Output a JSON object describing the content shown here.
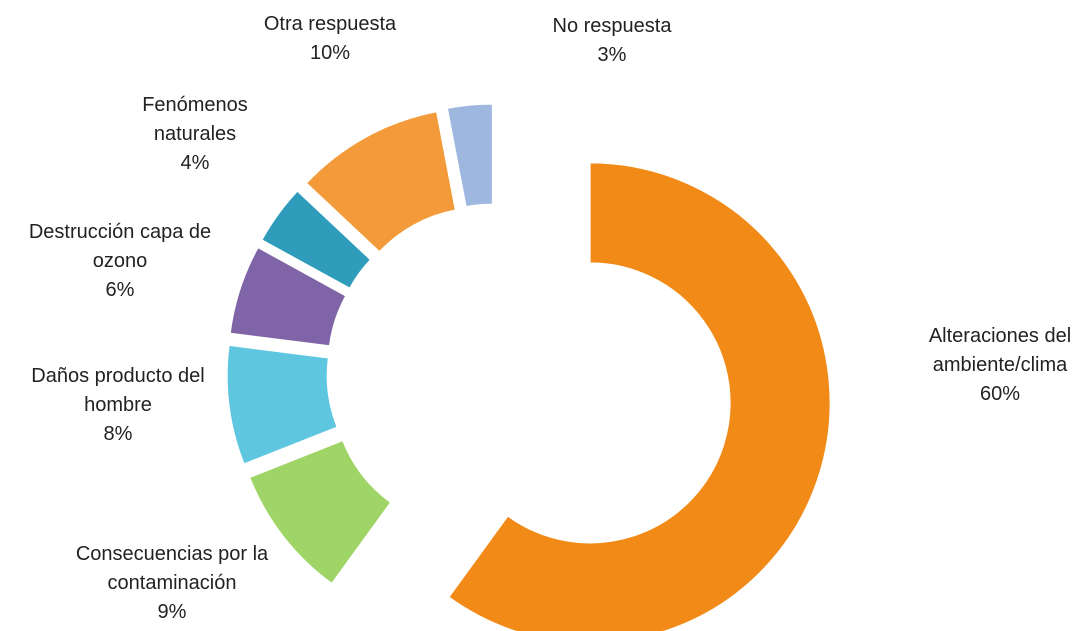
{
  "chart_data": {
    "type": "donut",
    "categories": [
      "Alteraciones del ambiente/clima",
      "Consecuencias por la contaminación",
      "Daños producto del hombre",
      "Destrucción capa de ozono",
      "Fenómenos naturales",
      "Otra respuesta",
      "No respuesta"
    ],
    "values": [
      60,
      9,
      8,
      6,
      4,
      10,
      3
    ],
    "value_labels": [
      "60%",
      "9%",
      "8%",
      "6%",
      "4%",
      "10%",
      "3%"
    ],
    "colors": [
      "#f28a17",
      "#9fd466",
      "#5ec6df",
      "#8064a8",
      "#2e9cba",
      "#f39b3a",
      "#9db7de"
    ]
  }
}
